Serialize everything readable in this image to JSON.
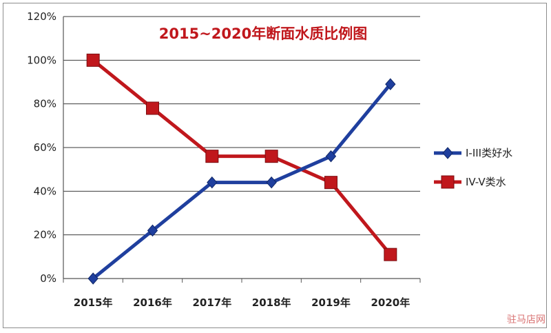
{
  "chart_data": {
    "type": "line",
    "title": "2015~2020年断面水质比例图",
    "categories": [
      "2015年",
      "2016年",
      "2017年",
      "2018年",
      "2019年",
      "2020年"
    ],
    "y_ticks": [
      "0%",
      "20%",
      "40%",
      "60%",
      "80%",
      "100%",
      "120%"
    ],
    "ylim": [
      0,
      120
    ],
    "grid": true,
    "legend_position": "right",
    "series": [
      {
        "name": "I-III类好水",
        "values": [
          0,
          22,
          44,
          44,
          56,
          89
        ],
        "color": "#1f3f9e",
        "marker": "diamond"
      },
      {
        "name": "IV-V类水",
        "values": [
          100,
          78,
          56,
          56,
          44,
          11
        ],
        "color": "#c0171c",
        "marker": "square"
      }
    ]
  },
  "watermark": "驻马店网"
}
